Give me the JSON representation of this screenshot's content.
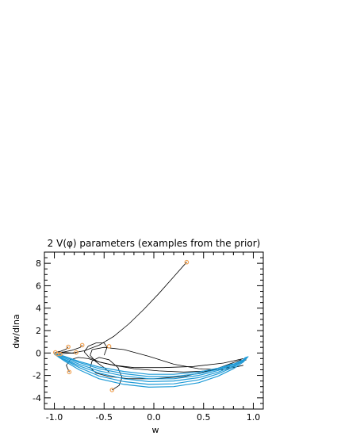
{
  "chart_data": {
    "type": "line",
    "title": "2 V(φ) parameters (examples from the prior)",
    "xlabel": "w",
    "ylabel": "dw/dlna",
    "xlim": [
      -1.1,
      1.1
    ],
    "ylim": [
      -5,
      9
    ],
    "xticks": [
      -1.0,
      -0.5,
      0.0,
      0.5,
      1.0
    ],
    "xtick_labels": [
      "-1.0",
      "-0.5",
      "0.0",
      "0.5",
      "1.0"
    ],
    "yticks": [
      -4,
      -2,
      0,
      2,
      4,
      6,
      8
    ],
    "ytick_labels": [
      "-4",
      "-2",
      "0",
      "2",
      "4",
      "6",
      "8"
    ],
    "grid": false,
    "legend": "none",
    "colors": {
      "black_series": "#000000",
      "blue_series": "#1f9bd7",
      "marker": "#f0a050"
    },
    "series": [
      {
        "color": "black",
        "x": [
          0.33,
          0.2,
          0.05,
          -0.1,
          -0.25,
          -0.4,
          -0.55,
          -0.7,
          -0.82,
          -0.92,
          -0.97
        ],
        "y": [
          8.1,
          6.8,
          5.3,
          3.9,
          2.6,
          1.5,
          0.7,
          0.2,
          0.0,
          -0.05,
          -0.1
        ]
      },
      {
        "color": "black",
        "x": [
          -0.42,
          -0.35,
          -0.32,
          -0.36,
          -0.45,
          -0.55,
          -0.62,
          -0.64,
          -0.58,
          -0.45,
          -0.25,
          0.0,
          0.3,
          0.6,
          0.88
        ],
        "y": [
          -3.3,
          -2.9,
          -2.2,
          -1.3,
          -0.6,
          -0.4,
          -0.7,
          -1.3,
          -1.8,
          -2.1,
          -2.3,
          -2.3,
          -2.1,
          -1.5,
          -0.6
        ]
      },
      {
        "color": "black",
        "x": [
          -0.5,
          -0.47,
          -0.5,
          -0.58,
          -0.66,
          -0.7,
          -0.65,
          -0.55,
          -0.4,
          -0.2,
          0.1,
          0.4,
          0.7,
          0.9
        ],
        "y": [
          -0.2,
          0.5,
          0.9,
          0.9,
          0.6,
          0.1,
          -0.4,
          -0.8,
          -1.1,
          -1.3,
          -1.3,
          -1.2,
          -0.9,
          -0.5
        ]
      },
      {
        "color": "black",
        "x": [
          -0.45,
          -0.5,
          -0.58,
          -0.64,
          -0.62,
          -0.5,
          -0.3,
          -0.05,
          0.2,
          0.45,
          0.7,
          0.9
        ],
        "y": [
          -1.7,
          -1.3,
          -0.8,
          -0.2,
          0.3,
          0.5,
          0.3,
          -0.3,
          -1.0,
          -1.4,
          -1.5,
          -1.1
        ]
      },
      {
        "color": "black",
        "x": [
          -0.85,
          -0.88,
          -0.84,
          -0.76,
          -0.66,
          -0.55,
          -0.4,
          -0.2,
          0.05,
          0.3,
          0.55,
          0.8,
          0.93
        ],
        "y": [
          -1.7,
          -1.1,
          -0.6,
          -0.4,
          -0.5,
          -0.8,
          -1.1,
          -1.4,
          -1.6,
          -1.7,
          -1.6,
          -1.2,
          -0.6
        ]
      },
      {
        "color": "black",
        "x": [
          -0.72,
          -0.74,
          -0.82,
          -0.9,
          -0.96,
          -1.0
        ],
        "y": [
          0.7,
          0.5,
          0.25,
          0.1,
          0.05,
          0.0
        ]
      },
      {
        "color": "black",
        "x": [
          -0.86,
          -0.88,
          -0.94,
          -0.99
        ],
        "y": [
          0.55,
          0.35,
          0.15,
          0.05
        ]
      },
      {
        "color": "black",
        "x": [
          -0.78,
          -0.82,
          -0.9,
          -0.98
        ],
        "y": [
          -0.05,
          0.0,
          0.05,
          0.05
        ]
      },
      {
        "color": "black",
        "x": [
          -0.94,
          -0.96,
          -0.98,
          -1.0
        ],
        "y": [
          -0.15,
          -0.1,
          -0.05,
          0.0
        ]
      },
      {
        "color": "blue",
        "x": [
          -1.0,
          -0.9,
          -0.75,
          -0.55,
          -0.3,
          -0.05,
          0.2,
          0.45,
          0.65,
          0.8,
          0.9,
          0.95
        ],
        "y": [
          -0.1,
          -0.7,
          -1.5,
          -2.3,
          -2.8,
          -3.05,
          -3.0,
          -2.65,
          -2.05,
          -1.4,
          -0.8,
          -0.3
        ]
      },
      {
        "color": "blue",
        "x": [
          -1.0,
          -0.9,
          -0.75,
          -0.55,
          -0.3,
          -0.05,
          0.2,
          0.45,
          0.65,
          0.8,
          0.9,
          0.94
        ],
        "y": [
          -0.1,
          -0.6,
          -1.3,
          -2.05,
          -2.55,
          -2.8,
          -2.75,
          -2.4,
          -1.85,
          -1.25,
          -0.7,
          -0.35
        ]
      },
      {
        "color": "blue",
        "x": [
          -1.0,
          -0.9,
          -0.75,
          -0.55,
          -0.3,
          -0.05,
          0.2,
          0.45,
          0.65,
          0.8,
          0.9,
          0.93
        ],
        "y": [
          -0.1,
          -0.55,
          -1.15,
          -1.8,
          -2.3,
          -2.55,
          -2.5,
          -2.2,
          -1.7,
          -1.15,
          -0.65,
          -0.35
        ]
      },
      {
        "color": "blue",
        "x": [
          -1.0,
          -0.9,
          -0.75,
          -0.55,
          -0.3,
          -0.05,
          0.2,
          0.45,
          0.65,
          0.8,
          0.9,
          0.92
        ],
        "y": [
          -0.05,
          -0.45,
          -1.0,
          -1.6,
          -2.05,
          -2.3,
          -2.3,
          -2.0,
          -1.55,
          -1.05,
          -0.6,
          -0.4
        ]
      },
      {
        "color": "blue",
        "x": [
          -1.0,
          -0.9,
          -0.75,
          -0.55,
          -0.3,
          -0.05,
          0.2,
          0.45,
          0.65,
          0.8,
          0.9
        ],
        "y": [
          -0.05,
          -0.35,
          -0.85,
          -1.4,
          -1.85,
          -2.1,
          -2.1,
          -1.85,
          -1.45,
          -1.0,
          -0.6
        ]
      },
      {
        "color": "blue",
        "x": [
          -1.0,
          -0.9,
          -0.75,
          -0.55,
          -0.3,
          -0.05,
          0.2,
          0.45,
          0.65,
          0.8
        ],
        "y": [
          0.0,
          -0.3,
          -0.75,
          -1.25,
          -1.65,
          -1.9,
          -1.9,
          -1.7,
          -1.35,
          -0.95
        ]
      }
    ],
    "markers": [
      {
        "x": 0.33,
        "y": 8.1
      },
      {
        "x": -0.42,
        "y": -3.3
      },
      {
        "x": -0.45,
        "y": 0.6
      },
      {
        "x": -0.72,
        "y": 0.7
      },
      {
        "x": -0.86,
        "y": 0.55
      },
      {
        "x": -0.85,
        "y": -1.7
      },
      {
        "x": -0.78,
        "y": 0.05
      },
      {
        "x": -0.94,
        "y": -0.1
      },
      {
        "x": -0.99,
        "y": 0.05
      },
      {
        "x": -0.97,
        "y": -0.1
      }
    ]
  }
}
